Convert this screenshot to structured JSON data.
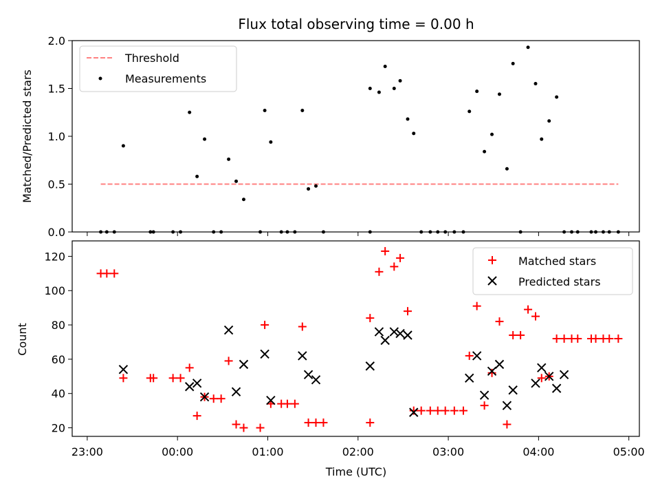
{
  "chart_data": [
    {
      "type": "scatter",
      "title": "Flux total observing time = 0.00 h",
      "xlabel": "",
      "ylabel": "Matched/Predicted stars",
      "xlim": [
        "22:50",
        "05:07"
      ],
      "ylim": [
        0,
        2.0
      ],
      "yticks": [
        "0.0",
        "0.5",
        "1.0",
        "1.5",
        "2.0"
      ],
      "grid": false,
      "legend_position": "top-left",
      "series": [
        {
          "name": "Threshold",
          "style": "dashed-line",
          "color": "#ff8080",
          "x": [
            "23:09",
            "04:53"
          ],
          "y": [
            0.5,
            0.5
          ]
        },
        {
          "name": "Measurements",
          "style": "points",
          "color": "#000000",
          "x": [
            "23:09",
            "23:13",
            "23:18",
            "23:24",
            "23:42",
            "23:44",
            "23:57",
            "24:02",
            "24:08",
            "24:13",
            "24:18",
            "24:24",
            "24:29",
            "24:34",
            "24:39",
            "24:44",
            "24:55",
            "24:58",
            "25:02",
            "25:09",
            "25:13",
            "25:18",
            "25:23",
            "25:27",
            "25:32",
            "25:37",
            "26:08",
            "26:08",
            "26:14",
            "26:18",
            "26:24",
            "26:28",
            "26:33",
            "26:37",
            "26:42",
            "26:48",
            "26:53",
            "26:58",
            "27:04",
            "27:10",
            "27:14",
            "27:19",
            "27:24",
            "27:29",
            "27:34",
            "27:39",
            "27:43",
            "27:48",
            "27:53",
            "27:58",
            "28:02",
            "28:07",
            "28:12",
            "28:17",
            "28:22",
            "28:26",
            "28:35",
            "28:38",
            "28:43",
            "28:47",
            "28:53"
          ],
          "y": [
            0.0,
            0.0,
            0.0,
            0.9,
            0.0,
            0.0,
            0.0,
            0.0,
            1.25,
            0.58,
            0.97,
            0.0,
            0.0,
            0.76,
            0.53,
            0.34,
            0.0,
            1.27,
            0.94,
            0.0,
            0.0,
            0.0,
            1.27,
            0.45,
            0.48,
            0.0,
            0.0,
            1.5,
            1.46,
            1.73,
            1.5,
            1.58,
            1.18,
            1.03,
            0.0,
            0.0,
            0.0,
            0.0,
            0.0,
            0.0,
            1.26,
            1.47,
            0.84,
            1.02,
            1.44,
            0.66,
            1.76,
            0.0,
            1.93,
            1.55,
            0.97,
            1.16,
            1.41,
            0.0,
            0.0,
            0.0,
            0.0,
            0.0,
            0.0,
            0.0,
            0.0
          ]
        }
      ]
    },
    {
      "type": "scatter",
      "title": "",
      "xlabel": "Time (UTC)",
      "ylabel": "Count",
      "xlim": [
        "22:50",
        "05:07"
      ],
      "xticks": [
        "23:00",
        "00:00",
        "01:00",
        "02:00",
        "03:00",
        "04:00",
        "05:00"
      ],
      "ylim": [
        15,
        129
      ],
      "yticks": [
        "20",
        "40",
        "60",
        "80",
        "100",
        "120"
      ],
      "grid": false,
      "legend_position": "top-right",
      "series": [
        {
          "name": "Matched stars",
          "marker": "plus",
          "color": "#ff0000",
          "x": [
            "23:09",
            "23:13",
            "23:18",
            "23:24",
            "23:42",
            "23:44",
            "23:57",
            "24:02",
            "24:08",
            "24:13",
            "24:18",
            "24:24",
            "24:29",
            "24:34",
            "24:39",
            "24:44",
            "24:55",
            "24:58",
            "25:02",
            "25:09",
            "25:13",
            "25:18",
            "25:23",
            "25:27",
            "25:32",
            "25:37",
            "26:08",
            "26:08",
            "26:14",
            "26:18",
            "26:24",
            "26:28",
            "26:33",
            "26:37",
            "26:42",
            "26:48",
            "26:53",
            "26:58",
            "27:04",
            "27:10",
            "27:14",
            "27:19",
            "27:24",
            "27:29",
            "27:34",
            "27:39",
            "27:43",
            "27:48",
            "27:53",
            "27:58",
            "28:02",
            "28:07",
            "28:12",
            "28:17",
            "28:22",
            "28:26",
            "28:35",
            "28:38",
            "28:43",
            "28:47",
            "28:53"
          ],
          "y": [
            110,
            110,
            110,
            49,
            49,
            49,
            49,
            49,
            55,
            27,
            38,
            37,
            37,
            59,
            22,
            20,
            20,
            80,
            34,
            34,
            34,
            34,
            79,
            23,
            23,
            23,
            23,
            84,
            111,
            123,
            114,
            119,
            88,
            30,
            30,
            30,
            30,
            30,
            30,
            30,
            62,
            91,
            33,
            52,
            82,
            22,
            74,
            74,
            89,
            85,
            49,
            50,
            72,
            72,
            72,
            72,
            72,
            72,
            72,
            72,
            72
          ]
        },
        {
          "name": "Predicted stars",
          "marker": "x",
          "color": "#000000",
          "x": [
            "23:24",
            "24:08",
            "24:13",
            "24:18",
            "24:34",
            "24:39",
            "24:44",
            "24:58",
            "25:02",
            "25:23",
            "25:27",
            "25:32",
            "26:08",
            "26:14",
            "26:18",
            "26:24",
            "26:28",
            "26:33",
            "26:37",
            "27:14",
            "27:19",
            "27:24",
            "27:29",
            "27:34",
            "27:39",
            "27:43",
            "27:58",
            "28:02",
            "28:07",
            "28:12",
            "28:17"
          ],
          "y": [
            54,
            44,
            46,
            38,
            77,
            41,
            57,
            63,
            36,
            62,
            51,
            48,
            56,
            76,
            71,
            76,
            75,
            74,
            29,
            49,
            62,
            39,
            53,
            57,
            33,
            42,
            46,
            55,
            50,
            43,
            51
          ]
        }
      ]
    }
  ]
}
